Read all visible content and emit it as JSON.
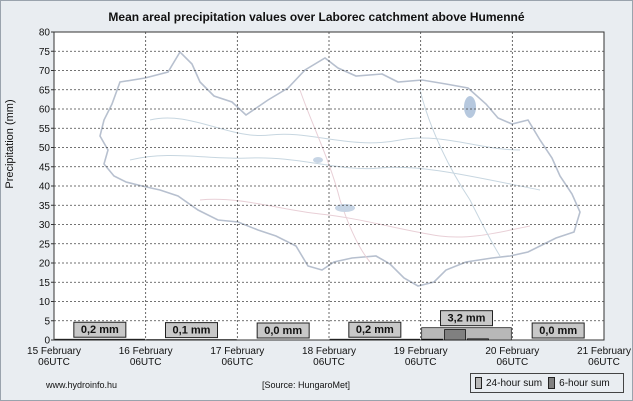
{
  "chart_data": {
    "type": "bar",
    "title": "Mean areal precipitation values over Laborec catchment above Humenné",
    "ylabel": "Precipitation (mm)",
    "ylim": [
      0,
      80
    ],
    "y_ticks": [
      "0",
      "5",
      "10",
      "15",
      "20",
      "25",
      "30",
      "35",
      "40",
      "45",
      "50",
      "55",
      "60",
      "65",
      "70",
      "75",
      "80"
    ],
    "x_ticks": [
      {
        "date": "15 February",
        "time": "06UTC"
      },
      {
        "date": "16 February",
        "time": "06UTC"
      },
      {
        "date": "17 February",
        "time": "06UTC"
      },
      {
        "date": "18 February",
        "time": "06UTC"
      },
      {
        "date": "19 February",
        "time": "06UTC"
      },
      {
        "date": "20 February",
        "time": "06UTC"
      },
      {
        "date": "21 February",
        "time": "06UTC"
      }
    ],
    "grid": true,
    "series": [
      {
        "name": "24-hour sum",
        "color": "#b8b8b8",
        "values": [
          0.2,
          0.1,
          0.0,
          0.2,
          3.2,
          0.0
        ],
        "labels": [
          "0,2 mm",
          "0,1 mm",
          "0,0 mm",
          "0,2 mm",
          "3,2 mm",
          "0,0 mm"
        ]
      },
      {
        "name": "6-hour sum",
        "color": "#808080",
        "values": [
          0.0,
          0.0,
          0.0,
          0.0,
          0.0,
          0.0,
          0.0,
          0.0,
          0.0,
          0.0,
          0.0,
          0.0,
          0.0,
          0.0,
          0.0,
          0.0,
          0.2,
          2.7,
          0.3,
          0.0,
          0.0,
          0.0,
          0.0,
          0.0
        ]
      }
    ]
  },
  "footer": {
    "website": "www.hydroinfo.hu",
    "source": "[Source: HungaroMet]"
  },
  "legend": {
    "items": [
      {
        "label": "24-hour sum",
        "color": "#b8b8b8"
      },
      {
        "label": "6-hour sum",
        "color": "#808080"
      }
    ]
  },
  "background": {
    "description_icon": "catchment-map-watermark"
  }
}
